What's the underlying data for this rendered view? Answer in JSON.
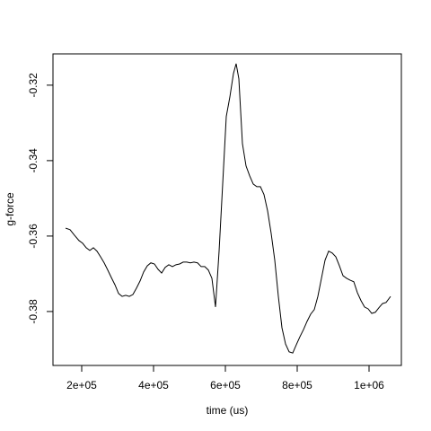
{
  "chart_data": {
    "type": "line",
    "x_label": "time (us)",
    "y_label": "g-force",
    "x": [
      155000,
      167500,
      180000,
      192500,
      202500,
      212500,
      222500,
      232500,
      242500,
      252500,
      262500,
      272500,
      282500,
      292500,
      302500,
      312500,
      322500,
      332500,
      342500,
      352500,
      362500,
      372500,
      382500,
      392500,
      402500,
      412500,
      422500,
      432500,
      442500,
      452500,
      462500,
      472500,
      482500,
      492500,
      502500,
      512500,
      522500,
      532500,
      542500,
      552500,
      562500,
      572500,
      582500,
      592500,
      602500,
      612500,
      622500,
      630000,
      637500,
      647500,
      657500,
      667500,
      677500,
      687500,
      697500,
      707500,
      717500,
      727500,
      737500,
      747500,
      757500,
      767500,
      777500,
      787500,
      797500,
      807500,
      817500,
      827500,
      837500,
      847500,
      857500,
      867500,
      877500,
      887500,
      897500,
      907500,
      917500,
      927500,
      937500,
      947500,
      957500,
      967500,
      977500,
      987500,
      997500,
      1007500,
      1017500,
      1027500,
      1037500,
      1047500,
      1060000
    ],
    "series": [
      {
        "color": "#000000",
        "values": [
          -0.3579,
          -0.3583,
          -0.3598,
          -0.3612,
          -0.3619,
          -0.3631,
          -0.3638,
          -0.3631,
          -0.364,
          -0.3655,
          -0.3671,
          -0.369,
          -0.371,
          -0.3729,
          -0.3752,
          -0.376,
          -0.3757,
          -0.376,
          -0.3755,
          -0.3738,
          -0.3719,
          -0.3695,
          -0.3679,
          -0.3671,
          -0.3674,
          -0.3688,
          -0.3698,
          -0.3683,
          -0.3676,
          -0.3681,
          -0.3676,
          -0.3674,
          -0.3669,
          -0.3669,
          -0.3671,
          -0.3669,
          -0.3671,
          -0.3681,
          -0.3681,
          -0.369,
          -0.3712,
          -0.3788,
          -0.364,
          -0.3462,
          -0.3283,
          -0.3231,
          -0.3169,
          -0.3143,
          -0.3183,
          -0.3355,
          -0.3414,
          -0.344,
          -0.3462,
          -0.3469,
          -0.3469,
          -0.349,
          -0.3533,
          -0.3593,
          -0.3664,
          -0.376,
          -0.3843,
          -0.3886,
          -0.3907,
          -0.391,
          -0.3888,
          -0.3867,
          -0.3848,
          -0.3826,
          -0.3807,
          -0.3795,
          -0.376,
          -0.3712,
          -0.3664,
          -0.364,
          -0.3645,
          -0.3655,
          -0.3679,
          -0.3705,
          -0.3712,
          -0.3717,
          -0.3721,
          -0.375,
          -0.3771,
          -0.3788,
          -0.3793,
          -0.3805,
          -0.3802,
          -0.379,
          -0.3779,
          -0.3776,
          -0.376
        ]
      }
    ],
    "xlim": [
      120000,
      1090000
    ],
    "xticks": [
      {
        "value": 200000,
        "label": "2e+05"
      },
      {
        "value": 400000,
        "label": "4e+05"
      },
      {
        "value": 600000,
        "label": "6e+05"
      },
      {
        "value": 800000,
        "label": "8e+05"
      },
      {
        "value": 1000000,
        "label": "1e+06"
      }
    ],
    "ylim": [
      -0.3943,
      -0.3117
    ],
    "yticks": [
      -0.38,
      -0.36,
      -0.34,
      -0.32
    ],
    "grid": false
  }
}
